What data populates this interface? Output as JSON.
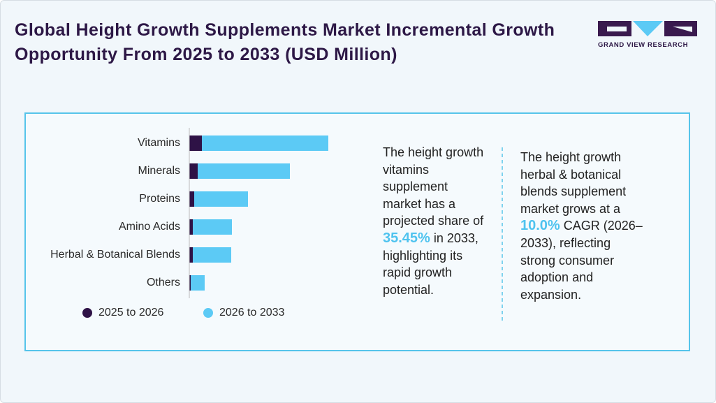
{
  "header": {
    "title": "Global Height Growth Supplements Market Incremental Growth Opportunity From 2025 to 2033 (USD Million)",
    "brand": "GRAND VIEW RESEARCH"
  },
  "chart_data": {
    "type": "bar",
    "orientation": "horizontal",
    "stacked": true,
    "categories": [
      "Vitamins",
      "Minerals",
      "Proteins",
      "Amino Acids",
      "Herbal & Botanical Blends",
      "Others"
    ],
    "series": [
      {
        "name": "2025 to 2026",
        "color": "#2e1246",
        "values": [
          18,
          12,
          7,
          5,
          5,
          2
        ]
      },
      {
        "name": "2026 to 2033",
        "color": "#5ccaf5",
        "values": [
          181,
          132,
          77,
          56,
          55,
          20
        ]
      }
    ],
    "xlim": [
      0,
      200
    ]
  },
  "notes": [
    {
      "before": "The height growth vitamins supplement market has a projected share of",
      "highlight": "35.45%",
      "after": "in 2033, highlighting its rapid growth potential."
    },
    {
      "before": "The height growth herbal & botanical blends supplement market grows at a",
      "highlight": "10.0%",
      "after": "CAGR (2026–2033), reflecting strong consumer adoption and expansion."
    }
  ]
}
